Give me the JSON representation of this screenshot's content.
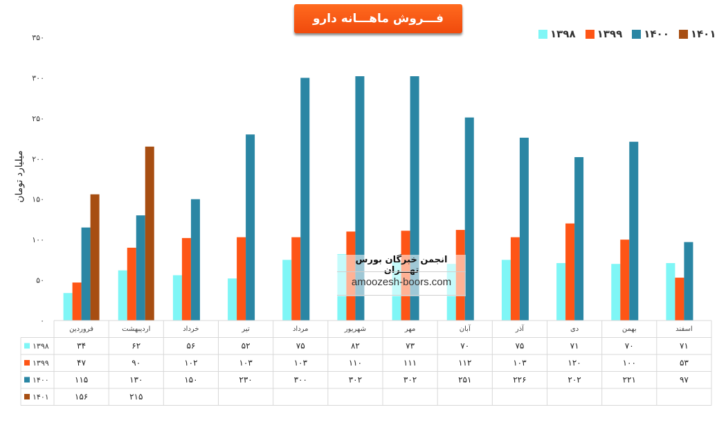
{
  "chart_data": {
    "type": "bar",
    "title": "فـــروش ماهـــانه دارو",
    "xlabel": "",
    "ylabel": "میلیارد تومان",
    "ylim": [
      0,
      350
    ],
    "yticks": [
      "۰",
      "۵۰",
      "۱۰۰",
      "۱۵۰",
      "۲۰۰",
      "۲۵۰",
      "۳۰۰",
      "۳۵۰"
    ],
    "legend": "top-right",
    "grid": false,
    "categories": [
      "فروردین",
      "اردیبهشت",
      "خرداد",
      "تیر",
      "مرداد",
      "شهریور",
      "مهر",
      "آبان",
      "آذر",
      "دی",
      "بهمن",
      "اسفند"
    ],
    "series": [
      {
        "name": "۱۳۹۸",
        "color": "#7ff6f6",
        "values": [
          34,
          62,
          56,
          52,
          75,
          82,
          73,
          70,
          75,
          71,
          70,
          71
        ],
        "labels": [
          "۳۴",
          "۶۲",
          "۵۶",
          "۵۲",
          "۷۵",
          "۸۲",
          "۷۳",
          "۷۰",
          "۷۵",
          "۷۱",
          "۷۰",
          "۷۱"
        ]
      },
      {
        "name": "۱۳۹۹",
        "color": "#fe5516",
        "values": [
          47,
          90,
          102,
          103,
          103,
          110,
          111,
          112,
          103,
          120,
          100,
          53
        ],
        "labels": [
          "۴۷",
          "۹۰",
          "۱۰۲",
          "۱۰۳",
          "۱۰۳",
          "۱۱۰",
          "۱۱۱",
          "۱۱۲",
          "۱۰۳",
          "۱۲۰",
          "۱۰۰",
          "۵۳"
        ]
      },
      {
        "name": "۱۴۰۰",
        "color": "#2a86a4",
        "values": [
          115,
          130,
          150,
          230,
          300,
          302,
          302,
          251,
          226,
          202,
          221,
          97
        ],
        "labels": [
          "۱۱۵",
          "۱۳۰",
          "۱۵۰",
          "۲۳۰",
          "۳۰۰",
          "۳۰۲",
          "۳۰۲",
          "۲۵۱",
          "۲۲۶",
          "۲۰۲",
          "۲۲۱",
          "۹۷"
        ]
      },
      {
        "name": "۱۴۰۱",
        "color": "#a74e12",
        "values": [
          156,
          215,
          null,
          null,
          null,
          null,
          null,
          null,
          null,
          null,
          null,
          null
        ],
        "labels": [
          "۱۵۶",
          "۲۱۵",
          "",
          "",
          "",
          "",
          "",
          "",
          "",
          "",
          "",
          ""
        ]
      }
    ]
  },
  "watermark": {
    "title": "انجمن خبرگان بورس تهـــران",
    "url": "amoozesh-boors.com"
  }
}
